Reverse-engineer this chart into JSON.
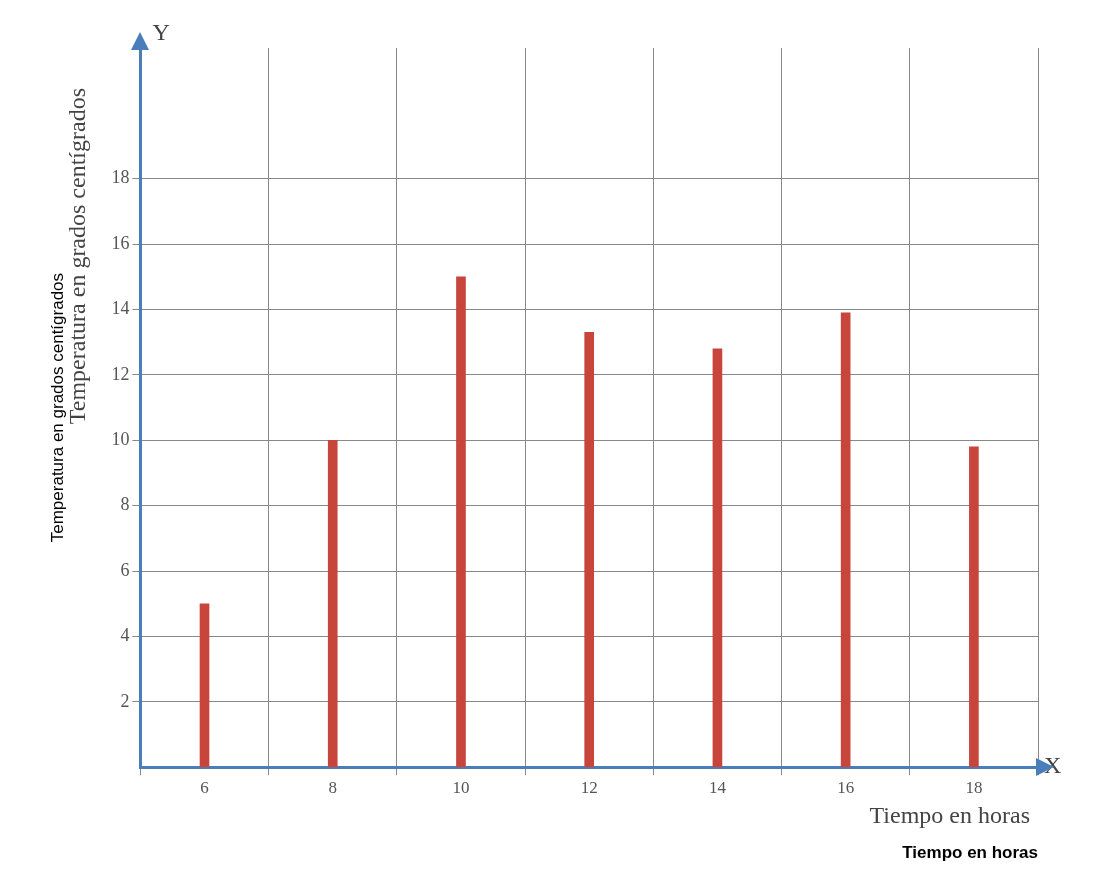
{
  "chart_data": {
    "type": "bar",
    "xlabel": "Tiempo en horas",
    "ylabel": "Temperatura en grados centígrados",
    "categories": [
      "6",
      "8",
      "10",
      "12",
      "14",
      "16",
      "18"
    ],
    "values": [
      5,
      10,
      15,
      13.3,
      12.8,
      13.9,
      9.8
    ],
    "color": "#c8453c",
    "ylim": [
      0,
      22
    ],
    "yticks": [
      2,
      4,
      6,
      8,
      10,
      12,
      14,
      16,
      18
    ],
    "grid": true,
    "legend": false,
    "annotations": [
      "Temperatura en grados centígrados",
      "Tiempo en horas",
      "Y",
      "X"
    ]
  }
}
